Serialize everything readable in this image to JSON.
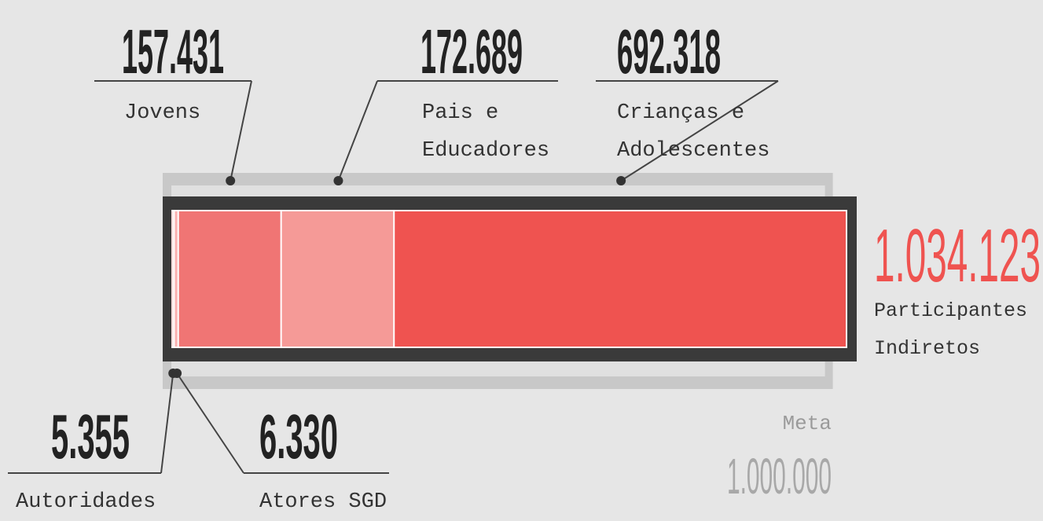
{
  "chart_data": {
    "type": "stacked-bar",
    "categories": [
      "Autoridades",
      "Atores SGD",
      "Jovens",
      "Pais e Educadores",
      "Crianças e Adolescentes"
    ],
    "values": [
      5355,
      6330,
      157431,
      172689,
      692318
    ],
    "value_labels": [
      "5.355",
      "6.330",
      "157.431",
      "172.689",
      "692.318"
    ],
    "colors": [
      "#fde0df",
      "#f9b3b2",
      "#f07574",
      "#f59a97",
      "#ef5350"
    ],
    "total": {
      "value": 1034123,
      "label": "1.034.123",
      "caption": "Participantes Indiretos",
      "color": "#ef5350"
    },
    "meta": {
      "caption": "Meta",
      "value": 1000000,
      "label": "1.000.000"
    }
  }
}
